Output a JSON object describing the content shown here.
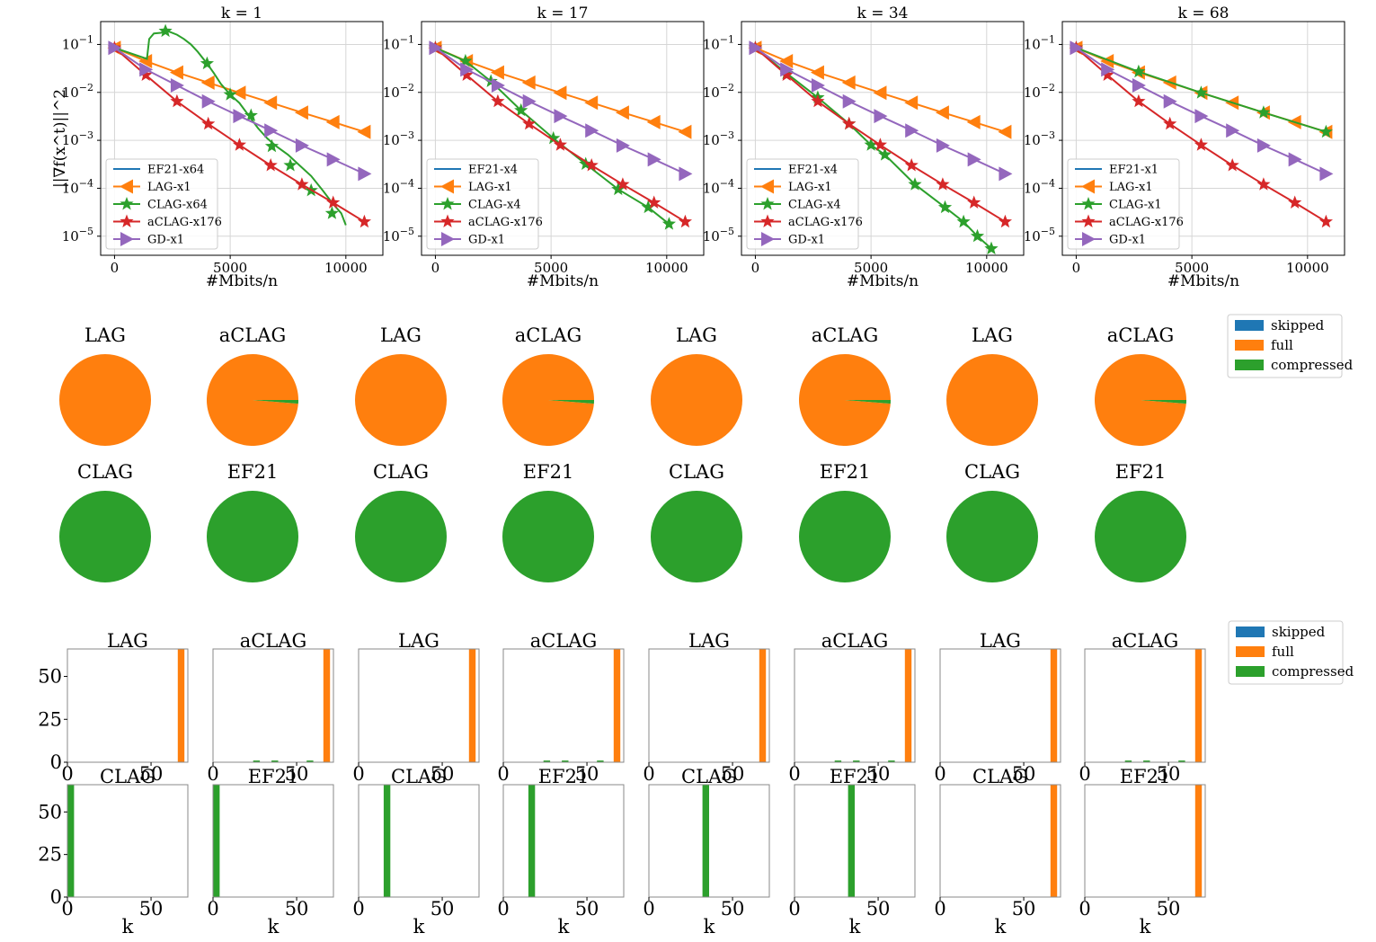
{
  "colors": {
    "EF21": "#1f77b4",
    "LAG": "#ff7f0e",
    "CLAG": "#2ca02c",
    "aCLAG": "#d62728",
    "GD": "#9467bd",
    "skipped": "#1f77b4",
    "full": "#ff7f0e",
    "compressed": "#2ca02c"
  },
  "chart_data": [
    {
      "type": "line",
      "title": "k = 1",
      "xlabel": "#Mbits/n",
      "ylabel": "||∇f(x^t)||^2",
      "yscale": "log",
      "xlim": [
        -600,
        11600
      ],
      "ylim": [
        4e-06,
        0.3
      ],
      "x_ticks": [
        "0",
        "5000",
        "10000"
      ],
      "grid": true,
      "legend_position": "lower-left",
      "series": [
        {
          "name": "EF21-x64",
          "color_key": "EF21",
          "marker": "none",
          "x": [],
          "y": []
        },
        {
          "name": "LAG-x1",
          "color_key": "LAG",
          "marker": "triangle-left",
          "x": [
            0,
            1350,
            2700,
            4050,
            5400,
            6750,
            8100,
            9450,
            10800
          ],
          "y": [
            0.085,
            0.045,
            0.026,
            0.016,
            0.0098,
            0.0061,
            0.0038,
            0.0024,
            0.0015
          ]
        },
        {
          "name": "CLAG-x64",
          "color_key": "CLAG",
          "marker": "star",
          "x": [
            0,
            1400,
            1500,
            1700,
            2000,
            2300,
            2700,
            3000,
            3300,
            3600,
            4000,
            4300,
            4600,
            5000,
            5400,
            5800,
            6200,
            6600,
            7000,
            7500,
            8000,
            8500,
            9000,
            9400,
            9800,
            10000
          ],
          "y": [
            0.085,
            0.05,
            0.13,
            0.17,
            0.175,
            0.19,
            0.16,
            0.13,
            0.1,
            0.07,
            0.04,
            0.025,
            0.015,
            0.009,
            0.006,
            0.0033,
            0.0018,
            0.0011,
            0.00075,
            0.0005,
            0.0003,
            0.00018,
            9e-05,
            5e-05,
            3e-05,
            1.7e-05
          ],
          "marker_x": [
            2200,
            4000,
            5000,
            5900,
            6800,
            7600,
            8500,
            9400
          ],
          "marker_y": [
            0.19,
            0.04,
            0.009,
            0.0033,
            0.00075,
            0.0003,
            9e-05,
            3e-05
          ]
        },
        {
          "name": "aCLAG-x176",
          "color_key": "aCLAG",
          "marker": "star",
          "x": [
            0,
            1350,
            2700,
            4050,
            5400,
            6750,
            8100,
            9450,
            10800
          ],
          "y": [
            0.085,
            0.023,
            0.0065,
            0.0022,
            0.0008,
            0.0003,
            0.00012,
            5e-05,
            2e-05
          ]
        },
        {
          "name": "GD-x1",
          "color_key": "GD",
          "marker": "triangle-right",
          "x": [
            0,
            1350,
            2700,
            4050,
            5400,
            6750,
            8100,
            9450,
            10800
          ],
          "y": [
            0.085,
            0.03,
            0.014,
            0.0065,
            0.0032,
            0.0016,
            0.00078,
            0.0004,
            0.0002
          ]
        }
      ]
    },
    {
      "type": "line",
      "title": "k = 17",
      "xlabel": "#Mbits/n",
      "ylabel": "",
      "yscale": "log",
      "xlim": [
        -600,
        11600
      ],
      "ylim": [
        4e-06,
        0.3
      ],
      "x_ticks": [
        "0",
        "5000",
        "10000"
      ],
      "grid": true,
      "legend_position": "lower-left",
      "series": [
        {
          "name": "EF21-x4",
          "color_key": "EF21",
          "marker": "none",
          "x": [],
          "y": []
        },
        {
          "name": "LAG-x1",
          "color_key": "LAG",
          "marker": "triangle-left",
          "x": [
            0,
            1350,
            2700,
            4050,
            5400,
            6750,
            8100,
            9450,
            10800
          ],
          "y": [
            0.085,
            0.045,
            0.026,
            0.016,
            0.0098,
            0.0061,
            0.0038,
            0.0024,
            0.0015
          ]
        },
        {
          "name": "CLAG-x4",
          "color_key": "CLAG",
          "marker": "star",
          "x": [
            0,
            1300,
            2400,
            3700,
            5100,
            6500,
            7900,
            9200,
            10100
          ],
          "y": [
            0.085,
            0.045,
            0.017,
            0.0042,
            0.0011,
            0.00032,
            9.5e-05,
            4e-05,
            1.8e-05
          ]
        },
        {
          "name": "aCLAG-x176",
          "color_key": "aCLAG",
          "marker": "star",
          "x": [
            0,
            1350,
            2700,
            4050,
            5400,
            6750,
            8100,
            9450,
            10800
          ],
          "y": [
            0.085,
            0.023,
            0.0065,
            0.0022,
            0.0008,
            0.0003,
            0.00012,
            5e-05,
            2e-05
          ]
        },
        {
          "name": "GD-x1",
          "color_key": "GD",
          "marker": "triangle-right",
          "x": [
            0,
            1350,
            2700,
            4050,
            5400,
            6750,
            8100,
            9450,
            10800
          ],
          "y": [
            0.085,
            0.03,
            0.014,
            0.0065,
            0.0032,
            0.0016,
            0.00078,
            0.0004,
            0.0002
          ]
        }
      ]
    },
    {
      "type": "line",
      "title": "k = 34",
      "xlabel": "#Mbits/n",
      "ylabel": "",
      "yscale": "log",
      "xlim": [
        -600,
        11600
      ],
      "ylim": [
        4e-06,
        0.3
      ],
      "x_ticks": [
        "0",
        "5000",
        "10000"
      ],
      "grid": true,
      "legend_position": "lower-left",
      "series": [
        {
          "name": "EF21-x4",
          "color_key": "EF21",
          "marker": "none",
          "x": [],
          "y": []
        },
        {
          "name": "LAG-x1",
          "color_key": "LAG",
          "marker": "triangle-left",
          "x": [
            0,
            1350,
            2700,
            4050,
            5400,
            6750,
            8100,
            9450,
            10800
          ],
          "y": [
            0.085,
            0.045,
            0.026,
            0.016,
            0.0098,
            0.0061,
            0.0038,
            0.0024,
            0.0015
          ]
        },
        {
          "name": "CLAG-x4",
          "color_key": "CLAG",
          "marker": "star",
          "x": [
            0,
            1350,
            2700,
            4050,
            5000,
            5600,
            6900,
            8200,
            9000,
            9600,
            10200
          ],
          "y": [
            0.085,
            0.025,
            0.0078,
            0.0022,
            0.0008,
            0.0005,
            0.00012,
            4e-05,
            2e-05,
            1e-05,
            5.5e-06
          ]
        },
        {
          "name": "aCLAG-x176",
          "color_key": "aCLAG",
          "marker": "star",
          "x": [
            0,
            1350,
            2700,
            4050,
            5400,
            6750,
            8100,
            9450,
            10800
          ],
          "y": [
            0.085,
            0.023,
            0.0065,
            0.0022,
            0.0008,
            0.0003,
            0.00012,
            5e-05,
            2e-05
          ]
        },
        {
          "name": "GD-x1",
          "color_key": "GD",
          "marker": "triangle-right",
          "x": [
            0,
            1350,
            2700,
            4050,
            5400,
            6750,
            8100,
            9450,
            10800
          ],
          "y": [
            0.085,
            0.03,
            0.014,
            0.0065,
            0.0032,
            0.0016,
            0.00078,
            0.0004,
            0.0002
          ]
        }
      ]
    },
    {
      "type": "line",
      "title": "k = 68",
      "xlabel": "#Mbits/n",
      "ylabel": "",
      "yscale": "log",
      "xlim": [
        -600,
        11600
      ],
      "ylim": [
        4e-06,
        0.3
      ],
      "x_ticks": [
        "0",
        "5000",
        "10000"
      ],
      "grid": true,
      "legend_position": "lower-left",
      "series": [
        {
          "name": "EF21-x1",
          "color_key": "EF21",
          "marker": "none",
          "x": [],
          "y": []
        },
        {
          "name": "LAG-x1",
          "color_key": "LAG",
          "marker": "triangle-left",
          "x": [
            0,
            1350,
            2700,
            4050,
            5400,
            6750,
            8100,
            9450,
            10800
          ],
          "y": [
            0.085,
            0.045,
            0.026,
            0.016,
            0.0098,
            0.0061,
            0.0038,
            0.0024,
            0.0015
          ]
        },
        {
          "name": "CLAG-x1",
          "color_key": "CLAG",
          "marker": "star",
          "x": [
            0,
            2700,
            5400,
            8100,
            10800
          ],
          "y": [
            0.085,
            0.027,
            0.0098,
            0.0038,
            0.0015
          ]
        },
        {
          "name": "aCLAG-x176",
          "color_key": "aCLAG",
          "marker": "star",
          "x": [
            0,
            1350,
            2700,
            4050,
            5400,
            6750,
            8100,
            9450,
            10800
          ],
          "y": [
            0.085,
            0.023,
            0.0065,
            0.0022,
            0.0008,
            0.0003,
            0.00012,
            5e-05,
            2e-05
          ]
        },
        {
          "name": "GD-x1",
          "color_key": "GD",
          "marker": "triangle-right",
          "x": [
            0,
            1350,
            2700,
            4050,
            5400,
            6750,
            8100,
            9450,
            10800
          ],
          "y": [
            0.085,
            0.03,
            0.014,
            0.0065,
            0.0032,
            0.0016,
            0.00078,
            0.0004,
            0.0002
          ]
        }
      ]
    },
    {
      "type": "pie",
      "layout": "grid 2x8",
      "legend": [
        "skipped",
        "full",
        "compressed"
      ],
      "legend_position": "right",
      "charts": [
        {
          "title": "LAG",
          "values": {
            "skipped": 0,
            "full": 1.0,
            "compressed": 0
          }
        },
        {
          "title": "aCLAG",
          "values": {
            "skipped": 0,
            "full": 0.987,
            "compressed": 0.013
          }
        },
        {
          "title": "LAG",
          "values": {
            "skipped": 0,
            "full": 1.0,
            "compressed": 0
          }
        },
        {
          "title": "aCLAG",
          "values": {
            "skipped": 0,
            "full": 0.987,
            "compressed": 0.013
          }
        },
        {
          "title": "LAG",
          "values": {
            "skipped": 0,
            "full": 1.0,
            "compressed": 0
          }
        },
        {
          "title": "aCLAG",
          "values": {
            "skipped": 0,
            "full": 0.987,
            "compressed": 0.013
          }
        },
        {
          "title": "LAG",
          "values": {
            "skipped": 0,
            "full": 1.0,
            "compressed": 0
          }
        },
        {
          "title": "aCLAG",
          "values": {
            "skipped": 0,
            "full": 0.987,
            "compressed": 0.013
          }
        },
        {
          "title": "CLAG",
          "values": {
            "skipped": 0,
            "full": 0,
            "compressed": 1.0
          }
        },
        {
          "title": "EF21",
          "values": {
            "skipped": 0,
            "full": 0,
            "compressed": 1.0
          }
        },
        {
          "title": "CLAG",
          "values": {
            "skipped": 0,
            "full": 0,
            "compressed": 1.0
          }
        },
        {
          "title": "EF21",
          "values": {
            "skipped": 0,
            "full": 0,
            "compressed": 1.0
          }
        },
        {
          "title": "CLAG",
          "values": {
            "skipped": 0,
            "full": 0,
            "compressed": 1.0
          }
        },
        {
          "title": "EF21",
          "values": {
            "skipped": 0,
            "full": 0,
            "compressed": 1.0
          }
        },
        {
          "title": "CLAG",
          "values": {
            "skipped": 0,
            "full": 0,
            "compressed": 1.0
          }
        },
        {
          "title": "EF21",
          "values": {
            "skipped": 0,
            "full": 0,
            "compressed": 1.0
          }
        }
      ]
    },
    {
      "type": "bar",
      "layout": "grid 2x8",
      "legend": [
        "skipped",
        "full",
        "compressed"
      ],
      "legend_position": "right",
      "xlabel": "k",
      "xlim": [
        0,
        72
      ],
      "ylim": [
        0,
        66
      ],
      "y_ticks": [
        "0",
        "25",
        "50"
      ],
      "x_ticks": [
        "0",
        "50"
      ],
      "bar_width": 4,
      "charts": [
        {
          "title": "LAG",
          "bars": [
            {
              "x": 68,
              "y": 66,
              "type": "full"
            }
          ]
        },
        {
          "title": "aCLAG",
          "bars": [
            {
              "x": 68,
              "y": 66,
              "type": "full"
            },
            {
              "x": 26,
              "y": 1,
              "type": "compressed"
            },
            {
              "x": 37,
              "y": 1,
              "type": "compressed"
            },
            {
              "x": 58,
              "y": 1,
              "type": "compressed"
            }
          ]
        },
        {
          "title": "LAG",
          "bars": [
            {
              "x": 68,
              "y": 66,
              "type": "full"
            }
          ]
        },
        {
          "title": "aCLAG",
          "bars": [
            {
              "x": 68,
              "y": 66,
              "type": "full"
            },
            {
              "x": 26,
              "y": 1,
              "type": "compressed"
            },
            {
              "x": 37,
              "y": 1,
              "type": "compressed"
            },
            {
              "x": 58,
              "y": 1,
              "type": "compressed"
            }
          ]
        },
        {
          "title": "LAG",
          "bars": [
            {
              "x": 68,
              "y": 66,
              "type": "full"
            }
          ]
        },
        {
          "title": "aCLAG",
          "bars": [
            {
              "x": 68,
              "y": 66,
              "type": "full"
            },
            {
              "x": 26,
              "y": 1,
              "type": "compressed"
            },
            {
              "x": 37,
              "y": 1,
              "type": "compressed"
            },
            {
              "x": 58,
              "y": 1,
              "type": "compressed"
            }
          ]
        },
        {
          "title": "LAG",
          "bars": [
            {
              "x": 68,
              "y": 66,
              "type": "full"
            }
          ]
        },
        {
          "title": "aCLAG",
          "bars": [
            {
              "x": 68,
              "y": 66,
              "type": "full"
            },
            {
              "x": 26,
              "y": 1,
              "type": "compressed"
            },
            {
              "x": 37,
              "y": 1,
              "type": "compressed"
            },
            {
              "x": 58,
              "y": 1,
              "type": "compressed"
            }
          ]
        },
        {
          "title": "CLAG",
          "bars": [
            {
              "x": 2,
              "y": 66,
              "type": "compressed"
            }
          ]
        },
        {
          "title": "EF21",
          "bars": [
            {
              "x": 2,
              "y": 66,
              "type": "compressed"
            }
          ]
        },
        {
          "title": "CLAG",
          "bars": [
            {
              "x": 17,
              "y": 66,
              "type": "compressed"
            }
          ]
        },
        {
          "title": "EF21",
          "bars": [
            {
              "x": 17,
              "y": 66,
              "type": "compressed"
            }
          ]
        },
        {
          "title": "CLAG",
          "bars": [
            {
              "x": 34,
              "y": 66,
              "type": "compressed"
            }
          ]
        },
        {
          "title": "EF21",
          "bars": [
            {
              "x": 34,
              "y": 66,
              "type": "compressed"
            }
          ]
        },
        {
          "title": "CLAG",
          "bars": [
            {
              "x": 68,
              "y": 66,
              "type": "full"
            }
          ]
        },
        {
          "title": "EF21",
          "bars": [
            {
              "x": 68,
              "y": 66,
              "type": "full"
            }
          ]
        }
      ]
    }
  ]
}
